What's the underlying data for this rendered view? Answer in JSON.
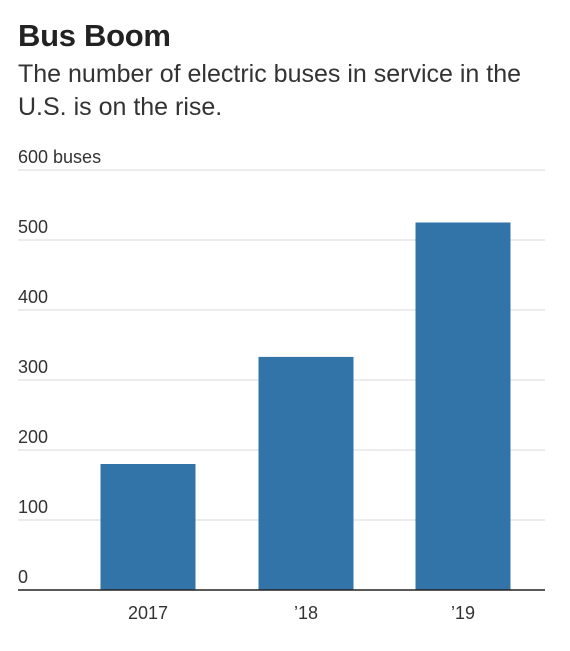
{
  "chart_data": {
    "type": "bar",
    "title": "Bus Boom",
    "subtitle": "The number of electric buses in service in the U.S. is on the rise.",
    "categories": [
      "2017",
      "’18",
      "’19"
    ],
    "values": [
      180,
      333,
      525
    ],
    "ylim": [
      0,
      600
    ],
    "yticks": [
      0,
      100,
      200,
      300,
      400,
      500,
      600
    ],
    "ytick_labels": [
      "0",
      "100",
      "200",
      "300",
      "400",
      "500",
      "600 buses"
    ],
    "xlabel": "",
    "ylabel": "",
    "grid": true,
    "legend": "none",
    "bar_color": "#3274a8",
    "grid_color": "#d9d9d9",
    "axis_color": "#222222"
  }
}
